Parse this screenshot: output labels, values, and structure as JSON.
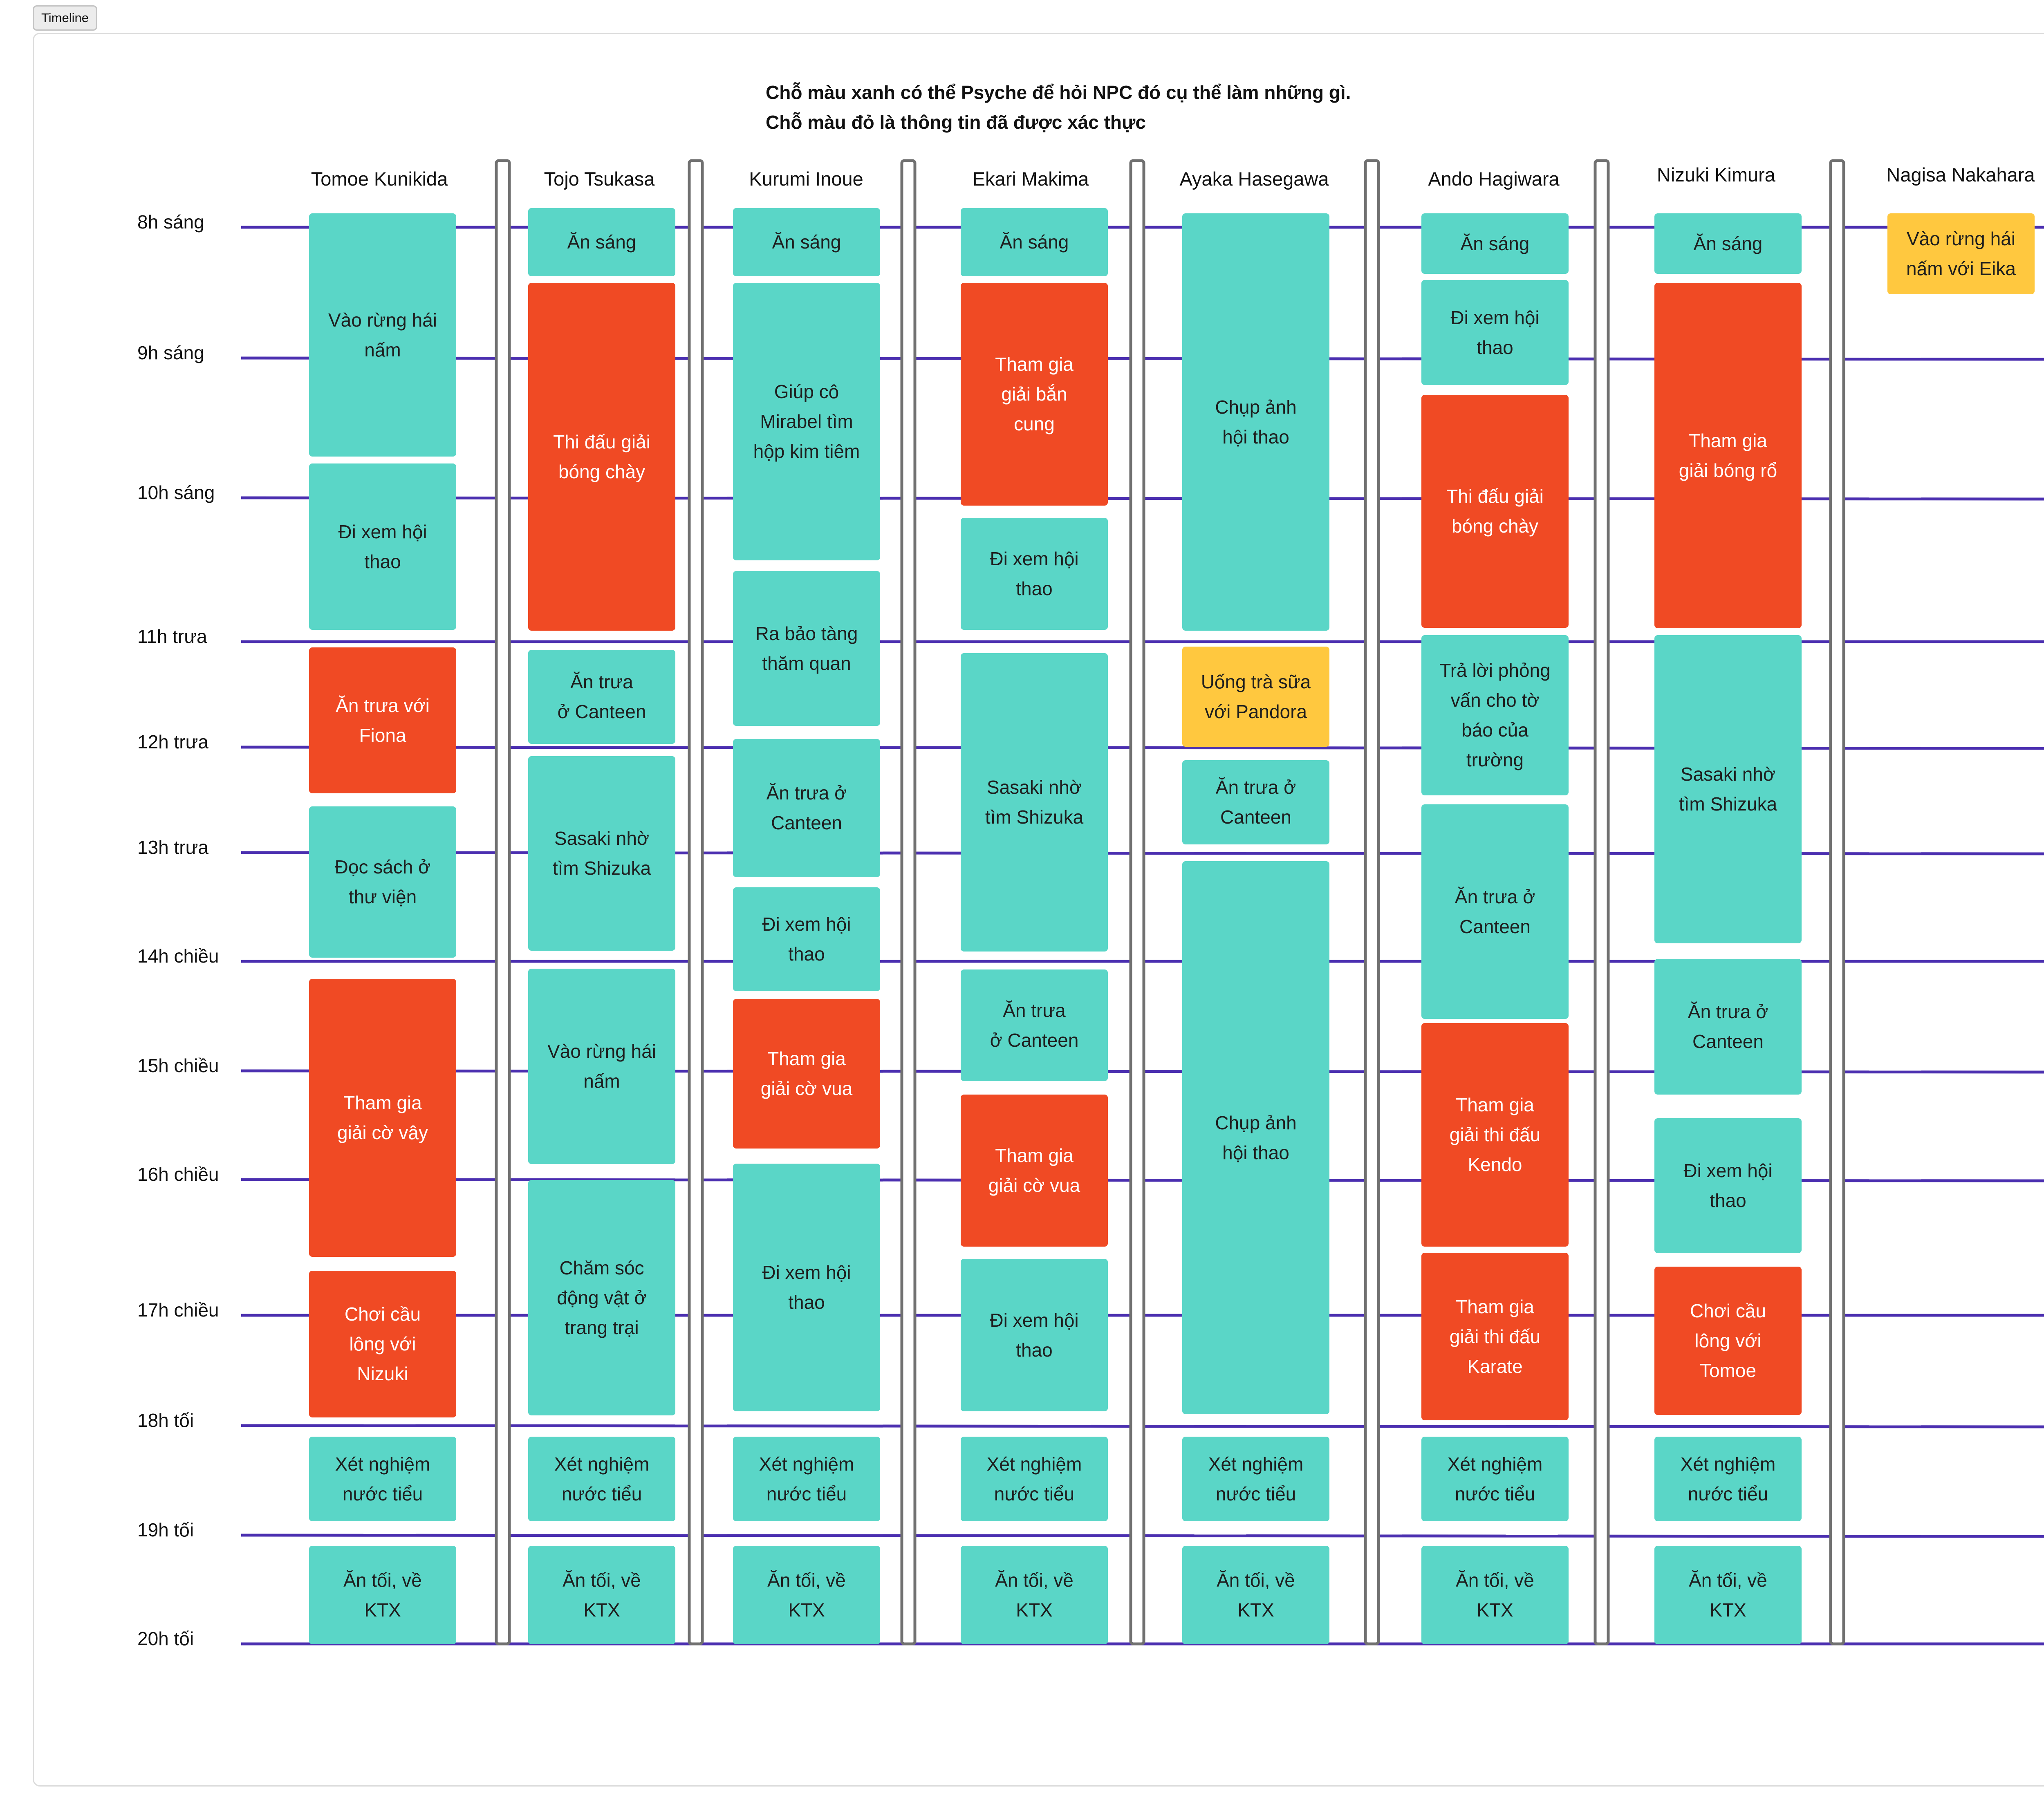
{
  "tab_label": "Timeline",
  "note_lines": [
    "Chỗ màu xanh có thể Psyche để hỏi NPC đó cụ thể làm những gì.",
    "Chỗ màu đỏ là thông tin đã được xác thực"
  ],
  "colors": {
    "teal": "#5ad6c7",
    "red": "#f04a24",
    "yellow": "#ffc83f",
    "timeline": "#4b2fb0",
    "divider": "#707070"
  },
  "times": [
    "8h sáng",
    "9h sáng",
    "10h sáng",
    "11h trưa",
    "12h trưa",
    "13h trưa",
    "14h chiều",
    "15h chiều",
    "16h chiều",
    "17h chiều",
    "18h tối",
    "19h tối",
    "20h tối"
  ],
  "columns": [
    {
      "name": "Tomoe Kunikida",
      "events": [
        {
          "lines": [
            "Vào rừng hái",
            "nấm"
          ],
          "color": "teal"
        },
        {
          "lines": [
            "Đi xem hội",
            "thao"
          ],
          "color": "teal"
        },
        {
          "lines": [
            "Ăn trưa với",
            "Fiona"
          ],
          "color": "red"
        },
        {
          "lines": [
            "Đọc sách ở",
            "thư viện"
          ],
          "color": "teal"
        },
        {
          "lines": [
            "Tham gia",
            "giải cờ vây"
          ],
          "color": "red"
        },
        {
          "lines": [
            "Chơi cầu",
            "lông với",
            "Nizuki"
          ],
          "color": "red"
        },
        {
          "lines": [
            "Xét nghiệm",
            "nước tiểu"
          ],
          "color": "teal"
        },
        {
          "lines": [
            "Ăn tối, về",
            "KTX"
          ],
          "color": "teal"
        }
      ]
    },
    {
      "name": "Tojo Tsukasa",
      "events": [
        {
          "lines": [
            "Ăn sáng"
          ],
          "color": "teal"
        },
        {
          "lines": [
            "Thi đấu giải",
            "bóng chày"
          ],
          "color": "red"
        },
        {
          "lines": [
            "Ăn trưa",
            "ở Canteen"
          ],
          "color": "teal"
        },
        {
          "lines": [
            "Sasaki nhờ",
            "tìm Shizuka"
          ],
          "color": "teal"
        },
        {
          "lines": [
            "Vào rừng hái",
            "nấm"
          ],
          "color": "teal"
        },
        {
          "lines": [
            "Chăm sóc",
            "động vật ở",
            "trang trại"
          ],
          "color": "teal"
        },
        {
          "lines": [
            "Xét nghiệm",
            "nước tiểu"
          ],
          "color": "teal"
        },
        {
          "lines": [
            "Ăn tối, về",
            "KTX"
          ],
          "color": "teal"
        }
      ]
    },
    {
      "name": "Kurumi Inoue",
      "events": [
        {
          "lines": [
            "Ăn sáng"
          ],
          "color": "teal"
        },
        {
          "lines": [
            "Giúp cô",
            "Mirabel tìm",
            "hộp kim tiêm"
          ],
          "color": "teal"
        },
        {
          "lines": [
            "Ra bảo tàng",
            "thăm quan"
          ],
          "color": "teal"
        },
        {
          "lines": [
            "Ăn trưa ở",
            "Canteen"
          ],
          "color": "teal"
        },
        {
          "lines": [
            "Đi xem hội",
            "thao"
          ],
          "color": "teal"
        },
        {
          "lines": [
            "Tham gia",
            "giải cờ vua"
          ],
          "color": "red"
        },
        {
          "lines": [
            "Đi xem hội",
            "thao"
          ],
          "color": "teal"
        },
        {
          "lines": [
            "Xét nghiệm",
            "nước tiểu"
          ],
          "color": "teal"
        },
        {
          "lines": [
            "Ăn tối, về",
            "KTX"
          ],
          "color": "teal"
        }
      ]
    },
    {
      "name": "Ekari Makima",
      "events": [
        {
          "lines": [
            "Ăn sáng"
          ],
          "color": "teal"
        },
        {
          "lines": [
            "Tham gia",
            "giải bắn",
            "cung"
          ],
          "color": "red"
        },
        {
          "lines": [
            "Đi xem hội",
            "thao"
          ],
          "color": "teal"
        },
        {
          "lines": [
            "Sasaki nhờ",
            "tìm Shizuka"
          ],
          "color": "teal"
        },
        {
          "lines": [
            "Ăn trưa",
            "ở Canteen"
          ],
          "color": "teal"
        },
        {
          "lines": [
            "Tham gia",
            "giải cờ vua"
          ],
          "color": "red"
        },
        {
          "lines": [
            "Đi xem hội",
            "thao"
          ],
          "color": "teal"
        },
        {
          "lines": [
            "Xét nghiệm",
            "nước tiểu"
          ],
          "color": "teal"
        },
        {
          "lines": [
            "Ăn tối, về",
            "KTX"
          ],
          "color": "teal"
        }
      ]
    },
    {
      "name": "Ayaka Hasegawa",
      "events": [
        {
          "lines": [
            "Chụp ảnh",
            "hội thao"
          ],
          "color": "teal"
        },
        {
          "lines": [
            "Uống trà sữa",
            "với Pandora"
          ],
          "color": "yellow"
        },
        {
          "lines": [
            "Ăn trưa ở",
            "Canteen"
          ],
          "color": "teal"
        },
        {
          "lines": [
            "Chụp ảnh",
            "hội thao"
          ],
          "color": "teal"
        },
        {
          "lines": [
            "Xét nghiệm",
            "nước tiểu"
          ],
          "color": "teal"
        },
        {
          "lines": [
            "Ăn tối, về",
            "KTX"
          ],
          "color": "teal"
        }
      ]
    },
    {
      "name": "Ando Hagiwara",
      "events": [
        {
          "lines": [
            "Ăn sáng"
          ],
          "color": "teal"
        },
        {
          "lines": [
            "Đi xem hội",
            "thao"
          ],
          "color": "teal"
        },
        {
          "lines": [
            "Thi đấu giải",
            "bóng chày"
          ],
          "color": "red"
        },
        {
          "lines": [
            "Trả lời phỏng",
            "vấn cho tờ",
            "báo của",
            "trường"
          ],
          "color": "teal"
        },
        {
          "lines": [
            "Ăn trưa ở",
            "Canteen"
          ],
          "color": "teal"
        },
        {
          "lines": [
            "Tham gia",
            "giải thi đấu",
            "Kendo"
          ],
          "color": "red"
        },
        {
          "lines": [
            "Tham gia",
            "giải thi đấu",
            "Karate"
          ],
          "color": "red"
        },
        {
          "lines": [
            "Xét nghiệm",
            "nước tiểu"
          ],
          "color": "teal"
        },
        {
          "lines": [
            "Ăn tối, về",
            "KTX"
          ],
          "color": "teal"
        }
      ]
    },
    {
      "name": "Nizuki Kimura",
      "events": [
        {
          "lines": [
            "Ăn sáng"
          ],
          "color": "teal"
        },
        {
          "lines": [
            "Tham gia",
            "giải bóng rổ"
          ],
          "color": "red"
        },
        {
          "lines": [
            "Sasaki nhờ",
            "tìm Shizuka"
          ],
          "color": "teal"
        },
        {
          "lines": [
            "Ăn trưa ở",
            "Canteen"
          ],
          "color": "teal"
        },
        {
          "lines": [
            "Đi xem hội",
            "thao"
          ],
          "color": "teal"
        },
        {
          "lines": [
            "Chơi cầu",
            "lông với",
            "Tomoe"
          ],
          "color": "red"
        },
        {
          "lines": [
            "Xét nghiệm",
            "nước tiểu"
          ],
          "color": "teal"
        },
        {
          "lines": [
            "Ăn tối, về",
            "KTX"
          ],
          "color": "teal"
        }
      ]
    },
    {
      "name": "Nagisa Nakahara",
      "events": [
        {
          "lines": [
            "Vào rừng hái",
            "nấm với Eika"
          ],
          "color": "yellow"
        }
      ]
    }
  ]
}
